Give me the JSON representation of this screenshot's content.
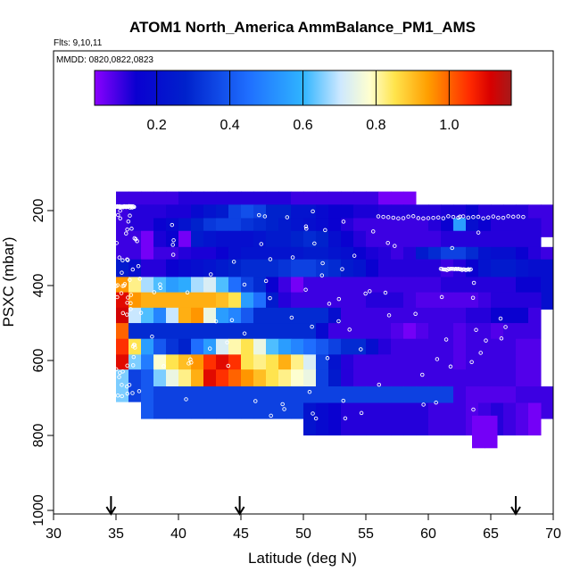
{
  "chart_data": {
    "type": "heatmap",
    "title": "ATOM1 North_America AmmBalance_PM1_AMS",
    "subtitle_flights": "Flts: 9,10,11",
    "subtitle_dates": "MMDD: 0820,0822,0823",
    "xlabel": "Latitude (deg N)",
    "ylabel": "PSXC (mbar)",
    "xlim": [
      30,
      70
    ],
    "ylim": [
      1000,
      50
    ],
    "x_ticks": [
      "30",
      "35",
      "40",
      "45",
      "50",
      "55",
      "60",
      "65",
      "70"
    ],
    "y_ticks": [
      "200",
      "400",
      "600",
      "800",
      "1000"
    ],
    "colorbar": {
      "range": [
        0.03,
        1.17
      ],
      "ticks": [
        "0.2",
        "0.4",
        "0.6",
        "0.8",
        "1.0"
      ],
      "tick_values": [
        0.2,
        0.4,
        0.6,
        0.8,
        1.0
      ]
    },
    "markers_latitude": [
      34.6,
      44.9,
      67.0
    ],
    "rows": [
      {
        "p": 192,
        "x0": 35,
        "dx": 1.0,
        "v": [
          0.1,
          0.1,
          0.1,
          0.1,
          0.1,
          0.12,
          0.12,
          0.12,
          0.12,
          0.12,
          0.12,
          0.12,
          0.12,
          0.12,
          0.1,
          0.1,
          0.1,
          0.1,
          0.1,
          0.1,
          0.1,
          0.05,
          0.05,
          0.05
        ]
      },
      {
        "p": 227,
        "x0": 35,
        "dx": 1.0,
        "v": [
          0.1,
          0.12,
          0.12,
          0.12,
          0.13,
          0.13,
          0.18,
          0.22,
          0.25,
          0.35,
          0.38,
          0.35,
          0.28,
          0.28,
          0.22,
          0.22,
          0.18,
          0.15,
          0.15,
          0.13,
          0.13,
          0.12,
          0.12,
          0.12,
          0.12,
          0.12,
          0.13,
          0.13,
          0.15,
          0.12,
          0.12,
          0.12,
          0.12,
          0.1,
          0.1
        ]
      },
      {
        "p": 263,
        "x0": 35,
        "dx": 1.0,
        "v": [
          0.1,
          0.12,
          0.12,
          0.15,
          0.18,
          0.22,
          0.28,
          0.33,
          0.35,
          0.35,
          0.32,
          0.3,
          0.28,
          0.25,
          0.22,
          0.2,
          0.18,
          0.15,
          0.12,
          0.1,
          0.1,
          0.1,
          0.1,
          0.1,
          0.1,
          0.12,
          0.15,
          0.55,
          0.2,
          0.15,
          0.12,
          0.12,
          0.12,
          0.12
        ]
      },
      {
        "p": 297,
        "x0": 35,
        "dx": 1.0,
        "v": [
          0.1,
          0.1,
          0.05,
          0.13,
          0.15,
          0.05,
          0.25,
          0.22,
          0.2,
          0.2,
          0.2,
          0.22,
          0.25,
          0.25,
          0.28,
          0.3,
          0.28,
          0.2,
          0.15,
          0.12,
          0.1,
          0.1,
          0.1,
          0.1,
          0.1,
          0.1,
          0.12,
          0.12,
          0.12,
          0.12,
          0.12,
          0.12
        ]
      },
      {
        "p": 340,
        "x0": 35,
        "dx": 1.0,
        "v": [
          0.1,
          0.1,
          0.05,
          0.1,
          0.1,
          0.12,
          0.13,
          0.13,
          0.15,
          0.2,
          0.22,
          0.22,
          0.22,
          0.22,
          0.23,
          0.25,
          0.25,
          0.22,
          0.2,
          0.15,
          0.13,
          0.12,
          0.1,
          0.12,
          0.25,
          0.3,
          0.35,
          0.35,
          0.3,
          0.22,
          0.2,
          0.2,
          0.15,
          0.12,
          0.1
        ]
      },
      {
        "p": 373,
        "x0": 35,
        "dx": 1.0,
        "v": [
          0.25,
          0.2,
          0.12,
          0.12,
          0.15,
          0.18,
          0.2,
          0.22,
          0.25,
          0.28,
          0.3,
          0.3,
          0.3,
          0.32,
          0.35,
          0.35,
          0.32,
          0.3,
          0.25,
          0.22,
          0.15,
          0.12,
          0.12,
          0.12,
          0.12,
          0.12,
          0.1,
          0.12,
          0.15,
          0.22,
          0.25,
          0.25,
          0.22,
          0.2,
          0.2
        ]
      },
      {
        "p": 420,
        "x0": 35,
        "dx": 1.0,
        "v": [
          0.95,
          0.82,
          0.68,
          0.62,
          0.55,
          0.58,
          0.68,
          0.72,
          0.62,
          0.45,
          0.35,
          0.3,
          0.15,
          0.1,
          0.05,
          0.1,
          0.1,
          0.1,
          0.1,
          0.1,
          0.1,
          0.1,
          0.1,
          0.1,
          0.1,
          0.1,
          0.12,
          0.12,
          0.12,
          0.12,
          0.12,
          0.12,
          0.15,
          0.15,
          0.2
        ]
      },
      {
        "p": 461,
        "x0": 35,
        "dx": 1.0,
        "v": [
          1.1,
          0.95,
          0.92,
          0.92,
          0.92,
          0.92,
          0.92,
          0.92,
          0.9,
          0.85,
          0.55,
          0.45,
          0.25,
          0.12,
          0.1,
          0.1,
          0.1,
          0.1,
          0.1,
          0.1,
          0.12,
          0.12,
          0.12,
          0.1,
          0.08,
          0.08,
          0.08,
          0.08,
          0.08,
          0.1,
          0.12,
          0.12,
          0.12,
          0.12
        ]
      },
      {
        "p": 502,
        "x0": 35,
        "dx": 1.0,
        "v": [
          1.12,
          0.7,
          0.62,
          0.5,
          0.7,
          0.92,
          0.95,
          0.75,
          0.55,
          0.5,
          0.4,
          0.3,
          0.3,
          0.3,
          0.3,
          0.3,
          0.3,
          0.2,
          0.1,
          0.1,
          0.1,
          0.1,
          0.1,
          0.1,
          0.1,
          0.1,
          0.1,
          0.1,
          0.12,
          0.12,
          0.15,
          0.15,
          0.15,
          0.1
        ]
      },
      {
        "p": 543,
        "x0": 35,
        "dx": 1.0,
        "v": [
          1.0,
          0.3,
          0.3,
          0.3,
          0.3,
          0.3,
          0.3,
          0.3,
          0.3,
          0.3,
          0.3,
          0.3,
          0.3,
          0.3,
          0.3,
          0.3,
          0.18,
          0.1,
          0.1,
          0.1,
          0.1,
          0.1,
          0.08,
          0.05,
          0.08,
          0.1,
          0.1,
          0.08,
          0.1,
          0.1,
          0.08,
          0.1,
          0.1,
          0.1
        ]
      },
      {
        "p": 585,
        "x0": 35,
        "dx": 1.0,
        "v": [
          1.05,
          0.85,
          0.55,
          0.4,
          0.32,
          0.28,
          0.45,
          0.55,
          0.72,
          0.8,
          0.85,
          0.75,
          0.62,
          0.55,
          0.5,
          0.45,
          0.4,
          0.35,
          0.3,
          0.3,
          0.2,
          0.12,
          0.1,
          0.1,
          0.1,
          0.1,
          0.1,
          0.08,
          0.1,
          0.1,
          0.1,
          0.1,
          0.08,
          0.08
        ]
      },
      {
        "p": 627,
        "x0": 35,
        "dx": 1.0,
        "v": [
          1.1,
          0.65,
          0.48,
          0.78,
          0.85,
          0.9,
          0.95,
          1.05,
          1.1,
          1.05,
          0.85,
          0.82,
          0.85,
          0.92,
          0.82,
          0.72,
          0.35,
          0.22,
          0.12,
          0.1,
          0.1,
          0.1,
          0.1,
          0.1,
          0.1,
          0.1,
          0.1,
          0.08,
          0.1,
          0.1,
          0.1,
          0.1,
          0.08,
          0.08
        ]
      },
      {
        "p": 667,
        "x0": 35,
        "dx": 1.0,
        "v": [
          0.65,
          0.35,
          0.4,
          0.65,
          0.75,
          0.82,
          0.92,
          1.1,
          1.05,
          1.0,
          0.95,
          0.9,
          0.85,
          0.82,
          0.78,
          0.75,
          0.35,
          0.25,
          0.12,
          0.1,
          0.1,
          0.1,
          0.1,
          0.1,
          0.1,
          0.1,
          0.1,
          0.1,
          0.1,
          0.1,
          0.1,
          0.1,
          0.08
        ]
      },
      {
        "p": 712,
        "x0": 37,
        "dx": 1.0,
        "v": [
          0.4,
          0.35,
          0.35,
          0.35,
          0.35,
          0.35,
          0.35,
          0.35,
          0.35,
          0.35,
          0.35,
          0.35,
          0.35,
          0.35,
          0.35,
          0.35,
          0.35,
          0.35,
          0.35,
          0.35,
          0.35,
          0.35,
          0.35,
          0.35,
          0.35,
          0.1,
          0.08,
          0.08,
          0.08,
          0.08,
          0.1,
          0.1,
          0.1,
          0.08,
          0.05
        ]
      },
      {
        "p": 756,
        "x0": 50,
        "dx": 1.0,
        "v": [
          0.22,
          0.18,
          0.15,
          0.12,
          0.12,
          0.12,
          0.12,
          0.12,
          0.12,
          0.12,
          0.1,
          0.1,
          0.1,
          0.08,
          0.1,
          0.12,
          0.1,
          0.08,
          0.05
        ]
      },
      {
        "p": 790,
        "x0": 63.5,
        "dx": 1.0,
        "v": [
          0.05,
          0.05
        ]
      }
    ]
  }
}
